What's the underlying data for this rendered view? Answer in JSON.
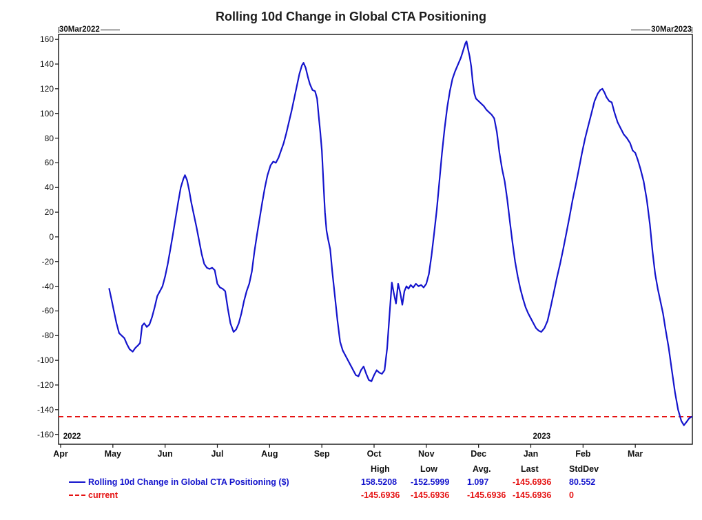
{
  "title": "Rolling 10d Change in Global CTA Positioning",
  "range_markers": {
    "start": "30Mar2022",
    "end": "30Mar2023"
  },
  "colors": {
    "series_blue": "#1414cc",
    "current_red": "#e51212",
    "axis": "#111111"
  },
  "legend": {
    "columns": [
      "High",
      "Low",
      "Avg.",
      "Last",
      "StdDev"
    ],
    "series_row": {
      "label": "Rolling 10d Change in Global CTA Positioning ($)",
      "values": [
        "158.5208",
        "-152.5999",
        "1.097",
        "-145.6936",
        "80.552"
      ]
    },
    "current_row": {
      "label": "current",
      "values": [
        "-145.6936",
        "-145.6936",
        "-145.6936",
        "-145.6936",
        "0"
      ]
    }
  },
  "chart_data": {
    "type": "line",
    "title": "Rolling 10d Change in Global CTA Positioning",
    "grid": false,
    "legend_position": "bottom",
    "x_axis": {
      "labels": [
        "Apr",
        "May",
        "Jun",
        "Jul",
        "Aug",
        "Sep",
        "Oct",
        "Nov",
        "Dec",
        "Jan",
        "Feb",
        "Mar"
      ],
      "start_date": "30Mar2022",
      "end_date": "30Mar2023",
      "year_labels": [
        {
          "text": "2022",
          "month_x": 0.05
        },
        {
          "text": "2023",
          "month_x": 9.04
        }
      ]
    },
    "y_axis": {
      "min": -160,
      "max": 160,
      "step": 20,
      "ticks": [
        160,
        140,
        120,
        100,
        80,
        60,
        40,
        20,
        0,
        -20,
        -40,
        -60,
        -80,
        -100,
        -120,
        -140,
        -160
      ]
    },
    "series": [
      {
        "name": "Rolling 10d Change in Global CTA Positioning ($)",
        "color": "#1414cc",
        "style": "solid",
        "high": 158.5208,
        "low": -152.5999,
        "avg": 1.097,
        "last": -145.6936,
        "stddev": 80.552,
        "points": [
          [
            0.93,
            -42
          ],
          [
            0.97,
            -50
          ],
          [
            1.02,
            -60
          ],
          [
            1.07,
            -70
          ],
          [
            1.12,
            -78
          ],
          [
            1.17,
            -80
          ],
          [
            1.22,
            -82
          ],
          [
            1.27,
            -87
          ],
          [
            1.32,
            -91
          ],
          [
            1.38,
            -93
          ],
          [
            1.43,
            -90
          ],
          [
            1.48,
            -88
          ],
          [
            1.52,
            -86
          ],
          [
            1.56,
            -72
          ],
          [
            1.6,
            -70
          ],
          [
            1.65,
            -73
          ],
          [
            1.7,
            -71
          ],
          [
            1.75,
            -65
          ],
          [
            1.8,
            -57
          ],
          [
            1.85,
            -48
          ],
          [
            1.9,
            -44
          ],
          [
            1.95,
            -40
          ],
          [
            2.0,
            -32
          ],
          [
            2.05,
            -22
          ],
          [
            2.1,
            -10
          ],
          [
            2.15,
            2
          ],
          [
            2.2,
            15
          ],
          [
            2.25,
            28
          ],
          [
            2.3,
            40
          ],
          [
            2.35,
            47
          ],
          [
            2.38,
            50
          ],
          [
            2.42,
            46
          ],
          [
            2.46,
            38
          ],
          [
            2.5,
            28
          ],
          [
            2.55,
            18
          ],
          [
            2.6,
            8
          ],
          [
            2.65,
            -3
          ],
          [
            2.7,
            -14
          ],
          [
            2.75,
            -22
          ],
          [
            2.8,
            -25
          ],
          [
            2.85,
            -26
          ],
          [
            2.9,
            -25
          ],
          [
            2.95,
            -27
          ],
          [
            3.0,
            -38
          ],
          [
            3.05,
            -41
          ],
          [
            3.1,
            -42
          ],
          [
            3.15,
            -44
          ],
          [
            3.2,
            -58
          ],
          [
            3.25,
            -70
          ],
          [
            3.31,
            -77
          ],
          [
            3.36,
            -75
          ],
          [
            3.41,
            -70
          ],
          [
            3.46,
            -62
          ],
          [
            3.51,
            -52
          ],
          [
            3.56,
            -44
          ],
          [
            3.61,
            -38
          ],
          [
            3.66,
            -28
          ],
          [
            3.71,
            -12
          ],
          [
            3.76,
            2
          ],
          [
            3.81,
            15
          ],
          [
            3.86,
            28
          ],
          [
            3.91,
            40
          ],
          [
            3.96,
            50
          ],
          [
            4.02,
            58
          ],
          [
            4.07,
            61
          ],
          [
            4.12,
            60
          ],
          [
            4.17,
            64
          ],
          [
            4.22,
            70
          ],
          [
            4.27,
            76
          ],
          [
            4.32,
            84
          ],
          [
            4.37,
            93
          ],
          [
            4.42,
            102
          ],
          [
            4.47,
            112
          ],
          [
            4.52,
            122
          ],
          [
            4.57,
            132
          ],
          [
            4.62,
            139
          ],
          [
            4.65,
            141
          ],
          [
            4.69,
            137
          ],
          [
            4.73,
            130
          ],
          [
            4.77,
            124
          ],
          [
            4.82,
            119
          ],
          [
            4.87,
            118
          ],
          [
            4.91,
            112
          ],
          [
            4.94,
            98
          ],
          [
            4.97,
            85
          ],
          [
            5.0,
            70
          ],
          [
            5.03,
            45
          ],
          [
            5.06,
            20
          ],
          [
            5.09,
            5
          ],
          [
            5.12,
            -2
          ],
          [
            5.16,
            -10
          ],
          [
            5.2,
            -28
          ],
          [
            5.25,
            -48
          ],
          [
            5.3,
            -68
          ],
          [
            5.35,
            -85
          ],
          [
            5.4,
            -92
          ],
          [
            5.45,
            -96
          ],
          [
            5.5,
            -100
          ],
          [
            5.55,
            -104
          ],
          [
            5.6,
            -108
          ],
          [
            5.65,
            -112
          ],
          [
            5.7,
            -113
          ],
          [
            5.75,
            -108
          ],
          [
            5.8,
            -105
          ],
          [
            5.85,
            -111
          ],
          [
            5.9,
            -116
          ],
          [
            5.95,
            -117
          ],
          [
            6.0,
            -112
          ],
          [
            6.05,
            -108
          ],
          [
            6.1,
            -110
          ],
          [
            6.15,
            -111
          ],
          [
            6.2,
            -108
          ],
          [
            6.25,
            -90
          ],
          [
            6.3,
            -60
          ],
          [
            6.34,
            -37
          ],
          [
            6.38,
            -46
          ],
          [
            6.42,
            -54
          ],
          [
            6.46,
            -38
          ],
          [
            6.5,
            -45
          ],
          [
            6.54,
            -55
          ],
          [
            6.58,
            -44
          ],
          [
            6.62,
            -40
          ],
          [
            6.66,
            -42
          ],
          [
            6.7,
            -39
          ],
          [
            6.75,
            -41
          ],
          [
            6.8,
            -38
          ],
          [
            6.85,
            -40
          ],
          [
            6.9,
            -39
          ],
          [
            6.95,
            -41
          ],
          [
            7.0,
            -38
          ],
          [
            7.05,
            -30
          ],
          [
            7.1,
            -15
          ],
          [
            7.15,
            3
          ],
          [
            7.2,
            22
          ],
          [
            7.25,
            45
          ],
          [
            7.3,
            68
          ],
          [
            7.35,
            88
          ],
          [
            7.4,
            105
          ],
          [
            7.45,
            118
          ],
          [
            7.5,
            128
          ],
          [
            7.55,
            134
          ],
          [
            7.6,
            139
          ],
          [
            7.63,
            142
          ],
          [
            7.66,
            145
          ],
          [
            7.69,
            149
          ],
          [
            7.72,
            153
          ],
          [
            7.75,
            157
          ],
          [
            7.77,
            158.5
          ],
          [
            7.8,
            152
          ],
          [
            7.83,
            146
          ],
          [
            7.86,
            138
          ],
          [
            7.89,
            125
          ],
          [
            7.92,
            116
          ],
          [
            7.95,
            112
          ],
          [
            8.0,
            110
          ],
          [
            8.05,
            108
          ],
          [
            8.1,
            106
          ],
          [
            8.15,
            103
          ],
          [
            8.2,
            101
          ],
          [
            8.25,
            99
          ],
          [
            8.3,
            96
          ],
          [
            8.35,
            85
          ],
          [
            8.4,
            68
          ],
          [
            8.45,
            55
          ],
          [
            8.5,
            45
          ],
          [
            8.55,
            30
          ],
          [
            8.6,
            12
          ],
          [
            8.65,
            -5
          ],
          [
            8.7,
            -20
          ],
          [
            8.75,
            -32
          ],
          [
            8.8,
            -42
          ],
          [
            8.85,
            -50
          ],
          [
            8.9,
            -57
          ],
          [
            8.95,
            -62
          ],
          [
            9.0,
            -66
          ],
          [
            9.05,
            -70
          ],
          [
            9.1,
            -74
          ],
          [
            9.15,
            -76
          ],
          [
            9.2,
            -77
          ],
          [
            9.26,
            -74
          ],
          [
            9.32,
            -68
          ],
          [
            9.38,
            -57
          ],
          [
            9.44,
            -45
          ],
          [
            9.5,
            -33
          ],
          [
            9.56,
            -22
          ],
          [
            9.62,
            -10
          ],
          [
            9.68,
            3
          ],
          [
            9.74,
            16
          ],
          [
            9.8,
            30
          ],
          [
            9.86,
            42
          ],
          [
            9.92,
            55
          ],
          [
            9.98,
            68
          ],
          [
            10.04,
            80
          ],
          [
            10.1,
            90
          ],
          [
            10.16,
            100
          ],
          [
            10.22,
            110
          ],
          [
            10.28,
            116
          ],
          [
            10.33,
            119
          ],
          [
            10.37,
            120
          ],
          [
            10.41,
            117
          ],
          [
            10.45,
            113
          ],
          [
            10.5,
            110
          ],
          [
            10.55,
            109
          ],
          [
            10.6,
            101
          ],
          [
            10.66,
            93
          ],
          [
            10.72,
            88
          ],
          [
            10.78,
            83
          ],
          [
            10.84,
            80
          ],
          [
            10.9,
            76
          ],
          [
            10.95,
            70
          ],
          [
            11.0,
            68
          ],
          [
            11.05,
            62
          ],
          [
            11.1,
            55
          ],
          [
            11.16,
            45
          ],
          [
            11.22,
            30
          ],
          [
            11.28,
            10
          ],
          [
            11.33,
            -12
          ],
          [
            11.38,
            -30
          ],
          [
            11.43,
            -42
          ],
          [
            11.48,
            -52
          ],
          [
            11.53,
            -62
          ],
          [
            11.58,
            -75
          ],
          [
            11.64,
            -90
          ],
          [
            11.7,
            -108
          ],
          [
            11.76,
            -126
          ],
          [
            11.82,
            -140
          ],
          [
            11.88,
            -149
          ],
          [
            11.93,
            -152.6
          ],
          [
            11.98,
            -150
          ],
          [
            12.03,
            -147
          ],
          [
            12.08,
            -145.7
          ]
        ]
      },
      {
        "name": "current",
        "color": "#e51212",
        "style": "dashed",
        "value": -145.6936
      }
    ]
  }
}
